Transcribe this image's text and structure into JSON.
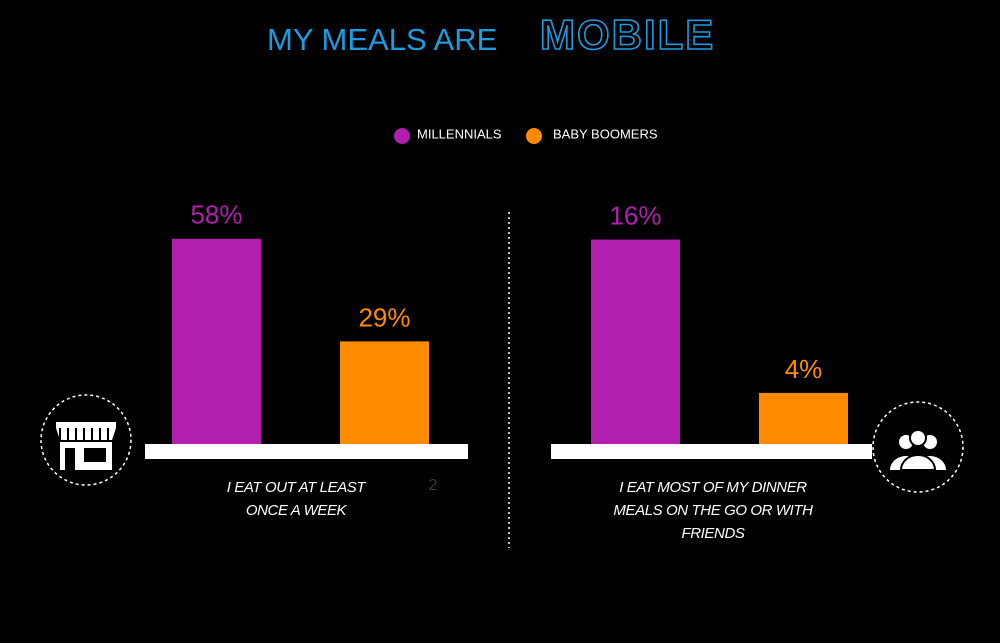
{
  "title": {
    "text": "MY MEALS ARE",
    "emphasis": "MOBILE"
  },
  "footnote_marker": "2",
  "chart_data": {
    "type": "bar",
    "categories": [
      "I EAT OUT AT LEAST ONCE A WEEK",
      "I EAT MOST OF MY DINNER MEALS ON THE GO OR WITH FRIENDS"
    ],
    "series": [
      {
        "name": "MILLENNIALS",
        "color": "#b01fae",
        "values": [
          58,
          16
        ],
        "value_labels": [
          "58%",
          "16%"
        ]
      },
      {
        "name": "BABY BOOMERS",
        "color": "#ff8a00",
        "values": [
          29,
          4
        ],
        "value_labels": [
          "29%",
          "4%"
        ]
      }
    ],
    "ylims": [
      [
        0,
        65
      ],
      [
        0,
        18
      ]
    ]
  }
}
